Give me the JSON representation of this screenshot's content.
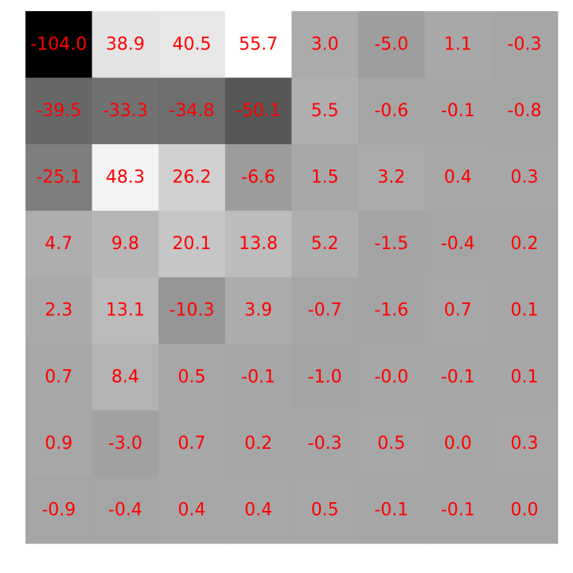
{
  "chart_data": {
    "type": "heatmap",
    "rows": 8,
    "cols": 8,
    "colormap": "gray",
    "vmin": -104.0,
    "vmax": 55.7,
    "label_color": "#ff0000",
    "grid": false,
    "axes_visible": false,
    "values": [
      [
        -104.0,
        38.9,
        40.5,
        55.7,
        3.0,
        -5.0,
        1.1,
        -0.3
      ],
      [
        -39.5,
        -33.3,
        -34.8,
        -50.1,
        5.5,
        -0.6,
        -0.1,
        -0.8
      ],
      [
        -25.1,
        48.3,
        26.2,
        -6.6,
        1.5,
        3.2,
        0.4,
        0.3
      ],
      [
        4.7,
        9.8,
        20.1,
        13.8,
        5.2,
        -1.5,
        -0.4,
        0.2
      ],
      [
        2.3,
        13.1,
        -10.3,
        3.9,
        -0.7,
        -1.6,
        0.7,
        0.1
      ],
      [
        0.7,
        8.4,
        0.5,
        -0.1,
        -1.0,
        -0.0,
        -0.1,
        0.1
      ],
      [
        0.9,
        -3.0,
        0.7,
        0.2,
        -0.3,
        0.5,
        0.0,
        0.3
      ],
      [
        -0.9,
        -0.4,
        0.4,
        0.4,
        0.5,
        -0.1,
        -0.1,
        0.0
      ]
    ],
    "labels": [
      [
        "-104.0",
        "38.9",
        "40.5",
        "55.7",
        "3.0",
        "-5.0",
        "1.1",
        "-0.3"
      ],
      [
        "-39.5",
        "-33.3",
        "-34.8",
        "-50.1",
        "5.5",
        "-0.6",
        "-0.1",
        "-0.8"
      ],
      [
        "-25.1",
        "48.3",
        "26.2",
        "-6.6",
        "1.5",
        "3.2",
        "0.4",
        "0.3"
      ],
      [
        "4.7",
        "9.8",
        "20.1",
        "13.8",
        "5.2",
        "-1.5",
        "-0.4",
        "0.2"
      ],
      [
        "2.3",
        "13.1",
        "-10.3",
        "3.9",
        "-0.7",
        "-1.6",
        "0.7",
        "0.1"
      ],
      [
        "0.7",
        "8.4",
        "0.5",
        "-0.1",
        "-1.0",
        "-0.0",
        "-0.1",
        "0.1"
      ],
      [
        "0.9",
        "-3.0",
        "0.7",
        "0.2",
        "-0.3",
        "0.5",
        "0.0",
        "0.3"
      ],
      [
        "-0.9",
        "-0.4",
        "0.4",
        "0.4",
        "0.5",
        "-0.1",
        "-0.1",
        "0.0"
      ]
    ]
  }
}
